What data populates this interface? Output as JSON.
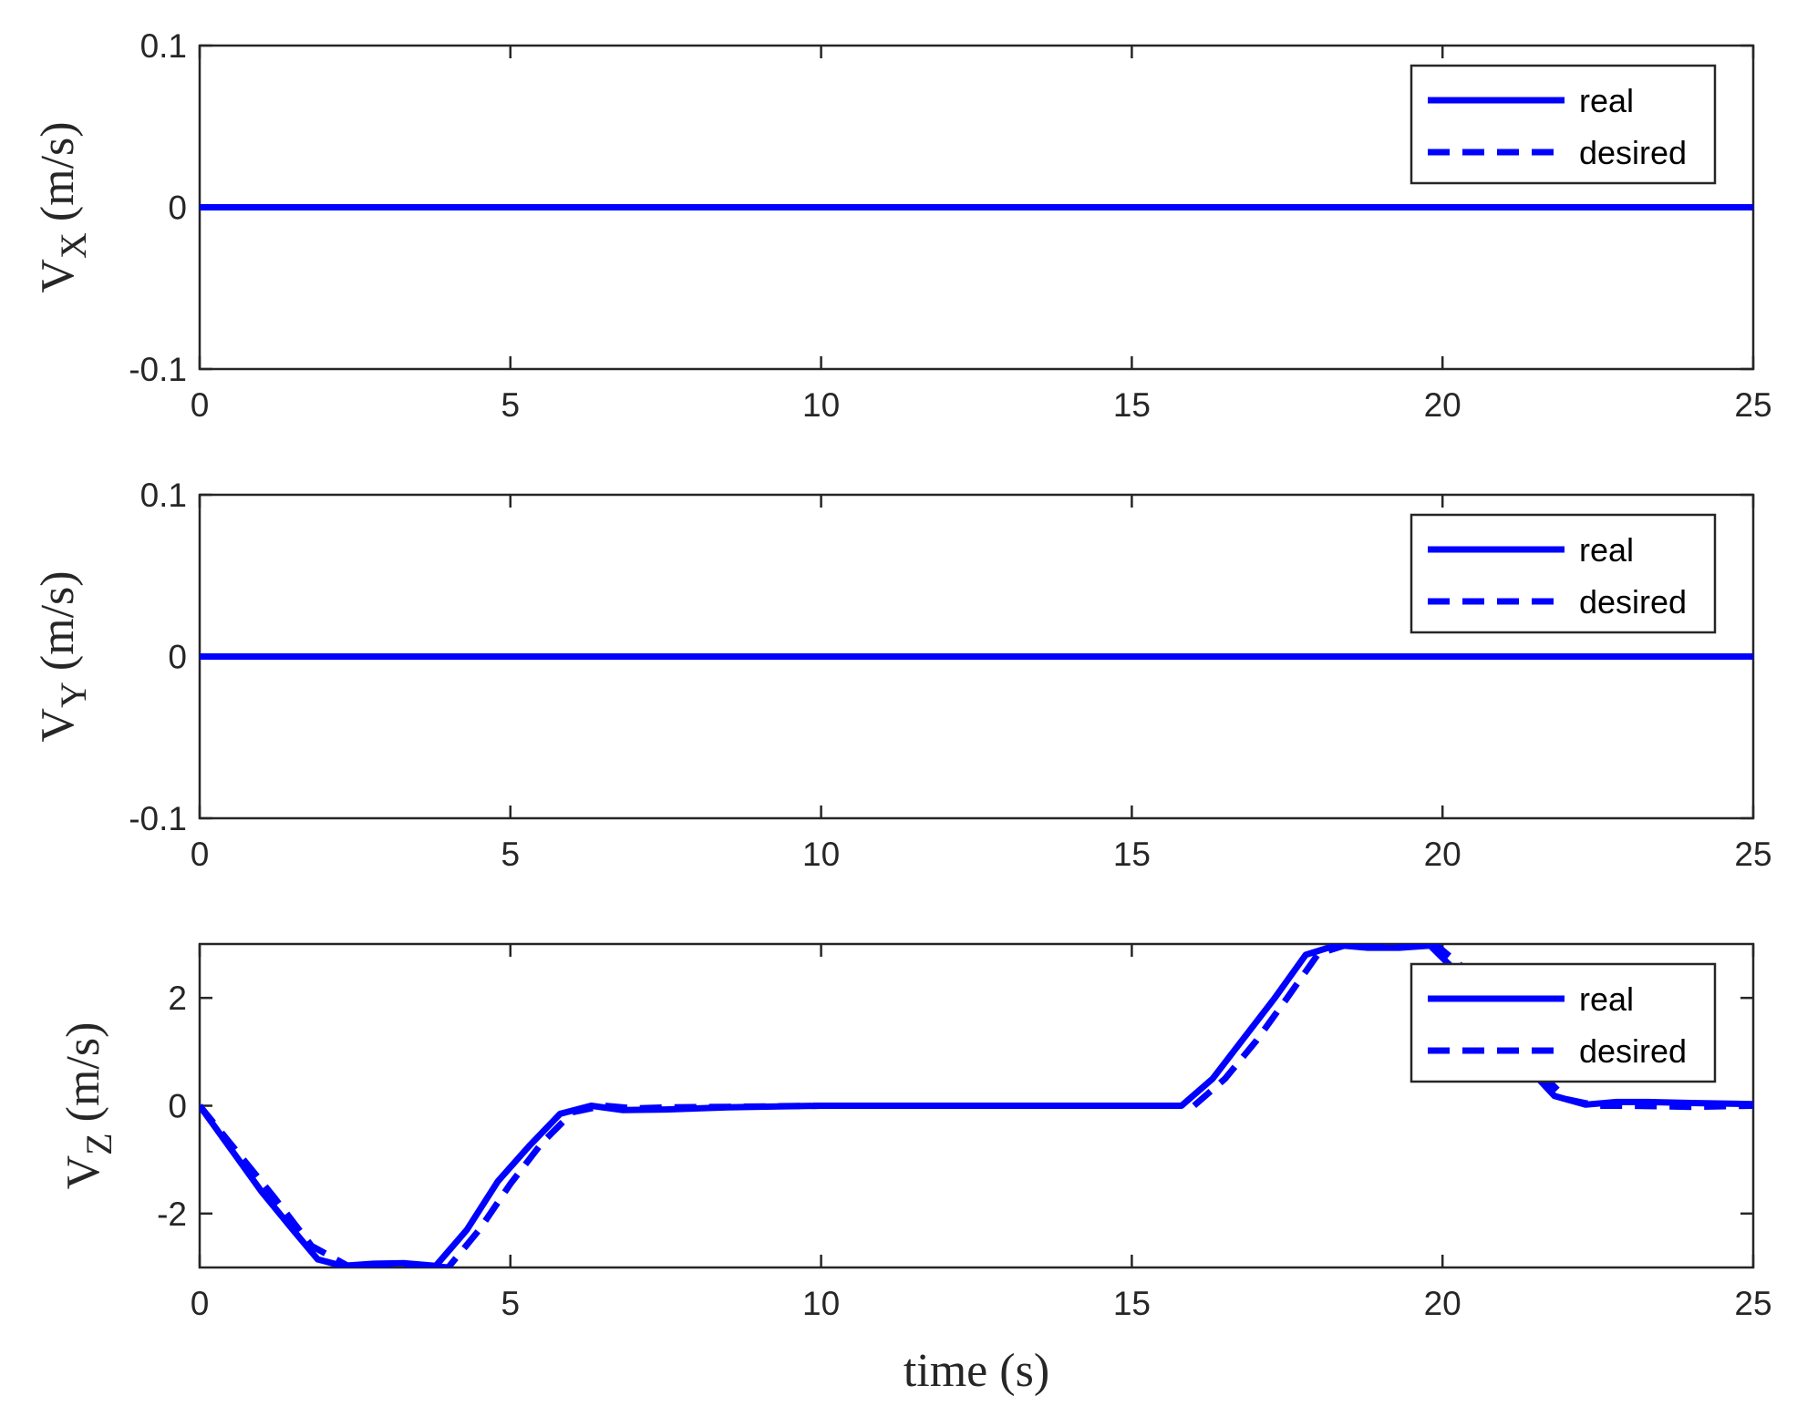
{
  "chart_data": [
    {
      "type": "line",
      "id": "vx",
      "ylabel": {
        "main": "V",
        "sub": "X",
        "unit": "(m/s)"
      },
      "xlim": [
        0,
        25
      ],
      "ylim": [
        -0.1,
        0.1
      ],
      "xticks": [
        "0",
        "5",
        "10",
        "15",
        "20",
        "25"
      ],
      "yticks": [
        "-0.1",
        "0",
        "0.1"
      ],
      "grid": false,
      "legend_position": "top-right",
      "series": [
        {
          "name": "real",
          "style": "solid",
          "color": "#0000ff",
          "x": [
            0,
            25
          ],
          "y": [
            0,
            0
          ]
        },
        {
          "name": "desired",
          "style": "dashed",
          "color": "#0000ff",
          "x": [
            0,
            25
          ],
          "y": [
            0,
            0
          ]
        }
      ]
    },
    {
      "type": "line",
      "id": "vy",
      "ylabel": {
        "main": "V",
        "sub": "Y",
        "unit": "(m/s)"
      },
      "xlim": [
        0,
        25
      ],
      "ylim": [
        -0.1,
        0.1
      ],
      "xticks": [
        "0",
        "5",
        "10",
        "15",
        "20",
        "25"
      ],
      "yticks": [
        "-0.1",
        "0",
        "0.1"
      ],
      "grid": false,
      "legend_position": "top-right",
      "series": [
        {
          "name": "real",
          "style": "solid",
          "color": "#0000ff",
          "x": [
            0,
            25
          ],
          "y": [
            0,
            0
          ]
        },
        {
          "name": "desired",
          "style": "dashed",
          "color": "#0000ff",
          "x": [
            0,
            25
          ],
          "y": [
            0,
            0
          ]
        }
      ]
    },
    {
      "type": "line",
      "id": "vz",
      "ylabel": {
        "main": "V",
        "sub": "Z",
        "unit": "(m/s)"
      },
      "xlabel": "time (s)",
      "xlim": [
        0,
        25
      ],
      "ylim": [
        -3,
        3
      ],
      "xticks": [
        "0",
        "5",
        "10",
        "15",
        "20",
        "25"
      ],
      "yticks": [
        "-2",
        "0",
        "2"
      ],
      "ytick_values": [
        -2,
        0,
        2
      ],
      "grid": false,
      "legend_position": "top-right",
      "series": [
        {
          "name": "real",
          "style": "solid",
          "color": "#0000ff",
          "x": [
            0,
            0.5,
            1,
            1.5,
            1.9,
            2.3,
            2.8,
            3.3,
            3.8,
            4.3,
            4.8,
            5.3,
            5.8,
            6.3,
            6.8,
            7.5,
            8.5,
            10,
            12,
            14,
            15.8,
            16.3,
            16.8,
            17.3,
            17.8,
            18.3,
            18.8,
            19.3,
            19.8,
            20.3,
            20.8,
            21.3,
            21.8,
            22.3,
            22.8,
            23.3,
            24,
            25
          ],
          "y": [
            0,
            -0.8,
            -1.6,
            -2.3,
            -2.85,
            -2.97,
            -2.93,
            -2.92,
            -2.97,
            -2.3,
            -1.4,
            -0.75,
            -0.15,
            0,
            -0.08,
            -0.07,
            -0.03,
            0,
            0,
            0,
            0,
            0.5,
            1.25,
            2.0,
            2.8,
            2.98,
            2.93,
            2.93,
            2.97,
            2.4,
            1.6,
            0.8,
            0.18,
            0.02,
            0.07,
            0.07,
            0.05,
            0.03
          ]
        },
        {
          "name": "desired",
          "style": "dashed",
          "color": "#0000ff",
          "x": [
            0,
            0.6,
            1.2,
            1.8,
            2.4,
            2.7,
            3.2,
            3.7,
            4.0,
            4.5,
            5.0,
            5.5,
            6.0,
            6.5,
            7.0,
            7.5,
            8.5,
            10,
            12,
            14,
            16.0,
            16.5,
            17.0,
            17.5,
            18.0,
            18.5,
            19.0,
            19.5,
            19.9,
            20.5,
            21.0,
            21.5,
            22.0,
            22.5,
            23.0,
            24,
            25
          ],
          "y": [
            0,
            -0.85,
            -1.7,
            -2.6,
            -2.98,
            -3.0,
            -2.98,
            -2.97,
            -3.0,
            -2.3,
            -1.45,
            -0.7,
            -0.12,
            0,
            -0.05,
            -0.03,
            -0.02,
            0,
            0,
            0,
            0,
            0.5,
            1.2,
            2.0,
            2.82,
            3.0,
            2.97,
            2.96,
            2.98,
            2.4,
            1.55,
            0.7,
            0.12,
            0,
            0,
            -0.02,
            0
          ]
        }
      ]
    }
  ]
}
